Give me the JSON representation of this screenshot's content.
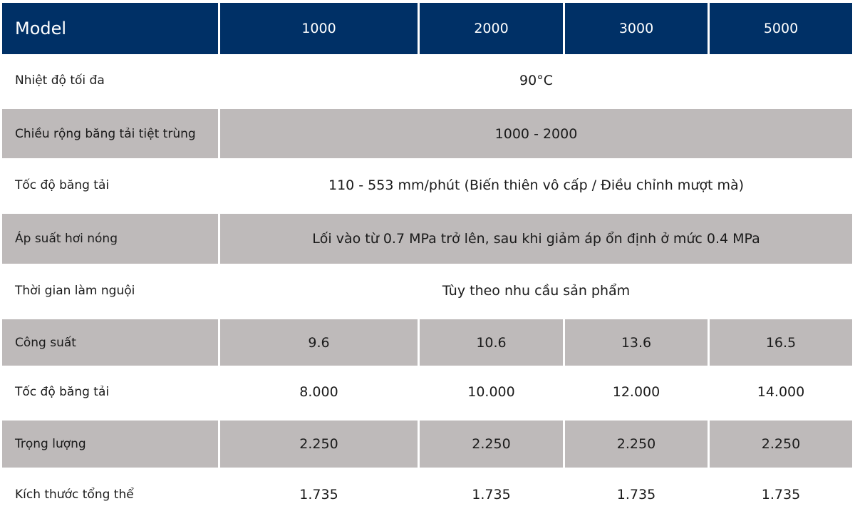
{
  "header": {
    "label": "Model",
    "columns": [
      "1000",
      "2000",
      "3000",
      "5000"
    ]
  },
  "rows": [
    {
      "label": "Nhiệt độ tối đa",
      "cells": [
        "90°C"
      ]
    },
    {
      "label": "Chiều rộng băng tải tiệt trùng",
      "cells": [
        "1000 - 2000"
      ]
    },
    {
      "label": "Tốc độ băng tải",
      "cells": [
        "110 - 553 mm/phút (Biến thiên vô cấp / Điều chỉnh mượt mà)"
      ]
    },
    {
      "label": "Áp suất hơi nóng",
      "cells": [
        "Lối vào từ 0.7 MPa trở lên, sau khi giảm áp ổn định ở mức 0.4 MPa"
      ]
    },
    {
      "label": "Thời gian làm nguội",
      "cells": [
        "Tùy theo nhu cầu sản phẩm"
      ]
    },
    {
      "label": "Công suất",
      "cells": [
        "9.6",
        "10.6",
        "13.6",
        "16.5"
      ]
    },
    {
      "label": "Tốc độ băng tải",
      "cells": [
        "8.000",
        "10.000",
        "12.000",
        "14.000"
      ]
    },
    {
      "label": "Trọng lượng",
      "cells": [
        "2.250",
        "2.250",
        "2.250",
        "2.250"
      ]
    },
    {
      "label": "Kích thước tổng thể",
      "cells": [
        "1.735",
        "1.735",
        "1.735",
        "1.735"
      ]
    }
  ]
}
